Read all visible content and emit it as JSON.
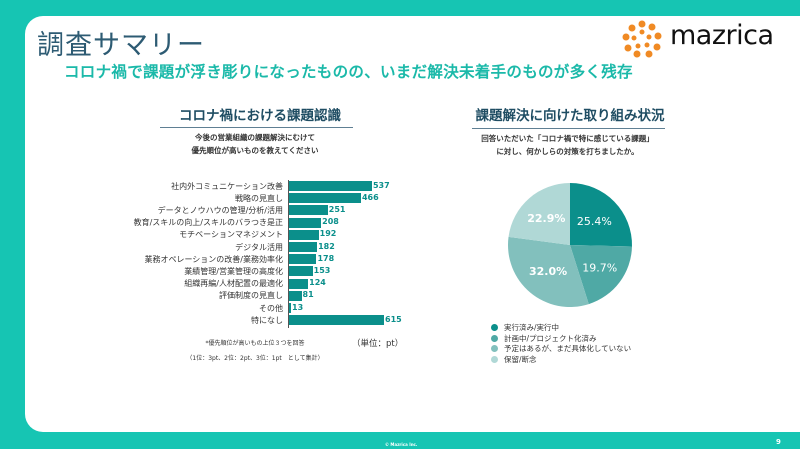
{
  "header": {
    "title": "調査サマリー",
    "subtitle": "コロナ禍で課題が浮き彫りになったものの、いまだ解決未着手のものが多く残存",
    "logo_text": "mazrica"
  },
  "colors": {
    "brand_teal": "#16c5b3",
    "bar": "#0b8f8b",
    "pie": [
      "#0b8f8b",
      "#4fa9a5",
      "#82c0bd",
      "#b0d8d6"
    ]
  },
  "left_section": {
    "title": "コロナ禍における課題認識",
    "desc_line1": "今後の営業組織の課題解決にむけて",
    "desc_line2": "優先順位が高いものを教えてください",
    "note_line1": "*優先順位が高いもの上位３つを回答",
    "note_line2": "（1位：3pt、2位：2pt、3位：1pt　として集計）",
    "unit": "（単位：pt）"
  },
  "right_section": {
    "title": "課題解決に向けた取り組み状況",
    "desc_line1": "回答いただいた「コロナ禍で特に感じている課題」",
    "desc_line2": "に対し、何かしらの対策を打ちましたか。"
  },
  "footer": {
    "copyright": "© Mazrica Inc.",
    "page": "9"
  },
  "chart_data": [
    {
      "type": "bar",
      "orientation": "horizontal",
      "title": "コロナ禍における課題認識",
      "unit": "pt",
      "categories": [
        "社内外コミュニケーション改善",
        "戦略の見直し",
        "データとノウハウの管理/分析/活用",
        "教育/スキルの向上/スキルのバラつき是正",
        "モチベーションマネジメント",
        "デジタル活用",
        "業務オペレーションの改善/業務効率化",
        "業績管理/営業管理の高度化",
        "組織再編/人材配置の最適化",
        "評価制度の見直し",
        "その他",
        "特になし"
      ],
      "values": [
        537,
        466,
        251,
        208,
        192,
        182,
        178,
        153,
        124,
        81,
        13,
        615
      ],
      "value_labels": [
        "537",
        "466",
        "251",
        "208",
        "192",
        "182",
        "178",
        "153",
        "124",
        "81",
        "13",
        "615"
      ],
      "xlim": [
        0,
        615
      ]
    },
    {
      "type": "pie",
      "title": "課題解決に向けた取り組み状況",
      "categories": [
        "実行済み/実行中",
        "計画中/プロジェクト化済み",
        "予定はあるが、まだ具体化していない",
        "保留/断念"
      ],
      "values": [
        25.4,
        19.7,
        32.0,
        22.9
      ],
      "value_labels": [
        "25.4%",
        "19.7%",
        "32.0%",
        "22.9%"
      ],
      "legend": "bottom-left"
    }
  ]
}
